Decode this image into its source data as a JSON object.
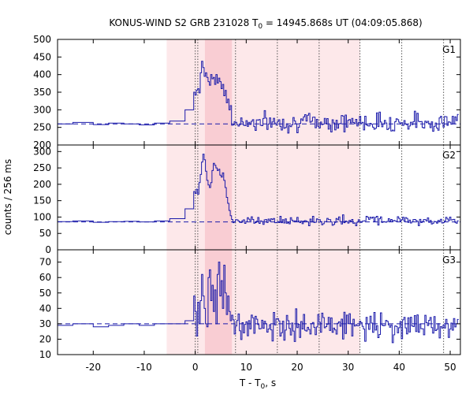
{
  "chart_data": {
    "type": "line",
    "title": {
      "prefix": "KONUS-WIND S2 GRB 231028 T",
      "sub": "0",
      "suffix": " = 14945.868s UT (04:09:05.868)"
    },
    "xlabel": {
      "prefix": "T - T",
      "sub": "0",
      "suffix": ", s"
    },
    "ylabel": "counts / 256 ms",
    "xlim": [
      -27,
      52
    ],
    "x_ticks": [
      -20,
      -10,
      0,
      10,
      20,
      30,
      40,
      50
    ],
    "x_tick_labels": [
      "-20",
      "-10",
      "0",
      "10",
      "20",
      "30",
      "40",
      "50"
    ],
    "shaded_regions": [
      {
        "x0": -5.6,
        "x1": 7.9,
        "color": "#fde8ea"
      },
      {
        "x0": 7.9,
        "x1": 32.3,
        "color": "#fde8ea"
      },
      {
        "x0": 1.9,
        "x1": 7.2,
        "color": "#f9cdd3"
      }
    ],
    "vertical_lines": [
      0,
      0.5,
      7.9,
      16.1,
      24.3,
      32.3,
      40.5,
      48.7
    ],
    "line_color": "#1a1aaa",
    "panels": [
      {
        "name": "G1",
        "ylim": [
          200,
          500
        ],
        "y_ticks": [
          200,
          250,
          300,
          350,
          400,
          450,
          500
        ],
        "y_tick_labels": [
          "200",
          "250",
          "300",
          "350",
          "400",
          "450",
          "500"
        ],
        "background": 260,
        "pre_trigger": {
          "x": [
            -27,
            -24,
            -20,
            -17,
            -14,
            -11,
            -8,
            -5,
            -2,
            -0.3
          ],
          "y": [
            262,
            260,
            264,
            258,
            262,
            260,
            257,
            262,
            268,
            300
          ]
        },
        "burst": {
          "x0": -0.3,
          "dx": 0.256,
          "y": [
            350,
            342,
            356,
            360,
            348,
            405,
            438,
            420,
            395,
            405,
            392,
            380,
            370,
            400,
            388,
            392,
            372,
            400,
            376,
            390,
            380,
            360,
            372,
            340,
            355,
            320,
            330,
            300,
            312
          ]
        },
        "decay": {
          "amplitude": 20,
          "baseline": 265,
          "x0": 7.7,
          "x1": 51.7,
          "seed": 7
        }
      },
      {
        "name": "G2",
        "ylim": [
          0,
          320
        ],
        "y_ticks": [
          0,
          50,
          100,
          150,
          200,
          250,
          300
        ],
        "y_tick_labels": [
          "0",
          "50",
          "100",
          "150",
          "200",
          "250",
          "300"
        ],
        "background": 85,
        "pre_trigger": {
          "x": [
            -27,
            -24,
            -20,
            -17,
            -14,
            -11,
            -8,
            -5,
            -2,
            -0.3
          ],
          "y": [
            85,
            86,
            88,
            84,
            86,
            87,
            85,
            88,
            95,
            125
          ]
        },
        "burst": {
          "x0": -0.3,
          "dx": 0.256,
          "y": [
            178,
            172,
            185,
            170,
            205,
            230,
            268,
            292,
            275,
            240,
            212,
            198,
            190,
            205,
            242,
            264,
            258,
            250,
            242,
            246,
            228,
            222,
            235,
            212,
            190,
            160,
            142,
            120,
            104
          ]
        },
        "decay": {
          "amplitude": 10,
          "baseline": 88,
          "x0": 7.7,
          "x1": 51.7,
          "seed": 11
        }
      },
      {
        "name": "G3",
        "ylim": [
          10,
          78
        ],
        "y_ticks": [
          10,
          20,
          30,
          40,
          50,
          60,
          70
        ],
        "y_tick_labels": [
          "10",
          "20",
          "30",
          "40",
          "50",
          "60",
          "70"
        ],
        "background": 30,
        "pre_trigger": {
          "x": [
            -27,
            -24,
            -20,
            -17,
            -14,
            -11,
            -8,
            -5,
            -2,
            -0.3
          ],
          "y": [
            28,
            29,
            30,
            28,
            29,
            30,
            29,
            30,
            30,
            32
          ]
        },
        "burst": {
          "x0": -0.3,
          "dx": 0.256,
          "y": [
            48,
            38,
            22,
            44,
            30,
            45,
            62,
            48,
            40,
            30,
            28,
            60,
            65,
            45,
            55,
            38,
            52,
            30,
            62,
            70,
            48,
            58,
            40,
            68,
            50,
            36,
            48,
            38,
            32
          ]
        },
        "decay": {
          "amplitude": 7,
          "baseline": 29,
          "x0": 7.7,
          "x1": 51.7,
          "seed": 19
        }
      }
    ]
  }
}
